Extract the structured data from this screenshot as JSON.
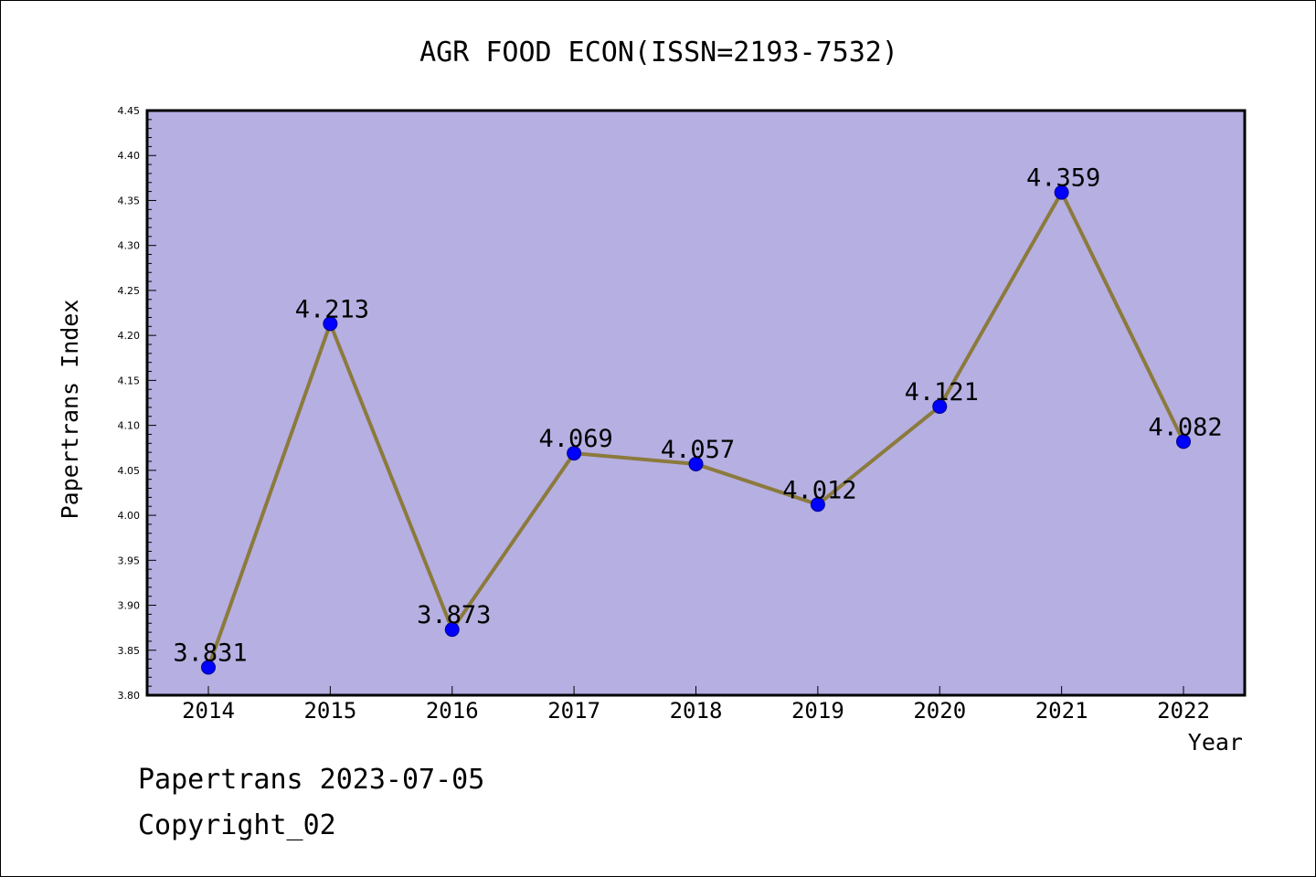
{
  "chart_data": {
    "type": "line",
    "title": "AGR FOOD ECON(ISSN=2193-7532)",
    "xlabel": "Year",
    "ylabel": "Papertrans Index",
    "categories": [
      "2014",
      "2015",
      "2016",
      "2017",
      "2018",
      "2019",
      "2020",
      "2021",
      "2022"
    ],
    "values": [
      3.831,
      4.213,
      3.873,
      4.069,
      4.057,
      4.012,
      4.121,
      4.359,
      4.082
    ],
    "data_labels": [
      "3.831",
      "4.213",
      "3.873",
      "4.069",
      "4.057",
      "4.012",
      "4.121",
      "4.359",
      "4.082"
    ],
    "ylim": [
      3.8,
      4.45
    ],
    "yticks": [
      "3.80",
      "3.85",
      "3.90",
      "3.95",
      "4.00",
      "4.05",
      "4.10",
      "4.15",
      "4.20",
      "4.25",
      "4.30",
      "4.35",
      "4.40",
      "4.45"
    ],
    "grid": false,
    "legend": "none",
    "colors": {
      "plot_background": "#b5afe2",
      "line": "#8b7a3c",
      "marker": "#0000ff",
      "marker_edge": "#00008b",
      "axes": "#000000"
    }
  },
  "footer": {
    "date_text": "Papertrans 2023-07-05",
    "copyright_text": "Copyright_02"
  }
}
